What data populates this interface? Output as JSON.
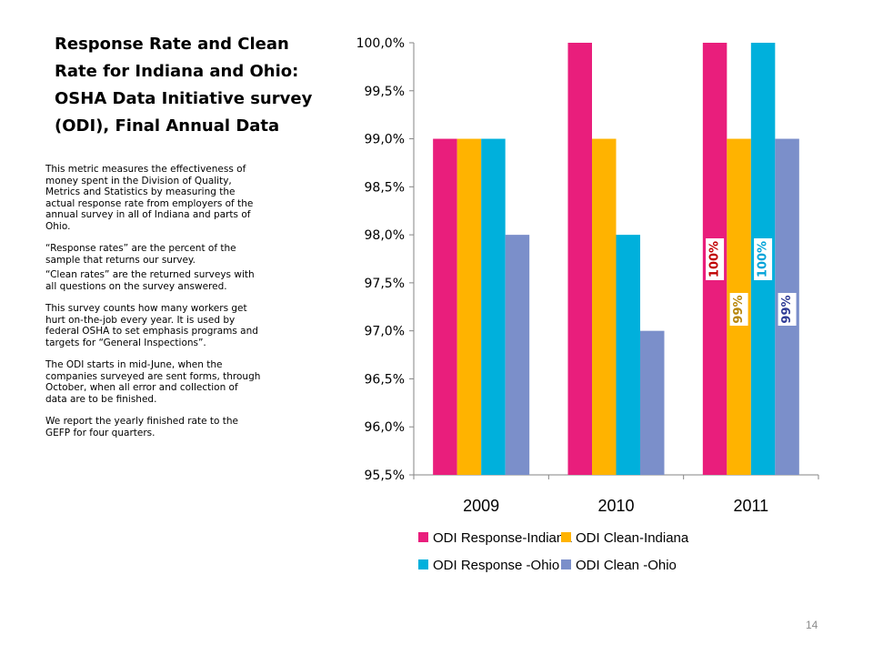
{
  "slide": {
    "title": "Response Rate and Clean\nRate for Indiana and Ohio:\nOSHA Data Initiative survey\n(ODI),  Final Annual Data",
    "paragraphs": [
      "This metric measures  the effectiveness of money spent in the Division of Quality, Metrics and Statistics by measuring the actual response rate from employers of the annual survey in all of Indiana and parts of Ohio.",
      "“Response rates” are the percent of the sample that returns our survey.",
      "“Clean rates” are the returned surveys with all questions on the survey answered.",
      "This survey counts how many workers get hurt on-the-job every year. It is used by federal OSHA to set emphasis programs and targets for “General Inspections”.",
      "The ODI starts in mid-June, when the companies surveyed are sent forms, through October, when all error and collection of data are to be finished.",
      "We report the yearly finished rate to the GEFP for four quarters."
    ],
    "page_number": "14"
  },
  "chart_data": {
    "type": "bar",
    "title": "",
    "xlabel": "",
    "ylabel": "",
    "categories": [
      "2009",
      "2010",
      "2011"
    ],
    "ylim": [
      95.5,
      100.0
    ],
    "y_ticks": [
      "95,5%",
      "96,0%",
      "96,5%",
      "97,0%",
      "97,5%",
      "98,0%",
      "98,5%",
      "99,0%",
      "99,5%",
      "100,0%"
    ],
    "y_tick_values": [
      95.5,
      96.0,
      96.5,
      97.0,
      97.5,
      98.0,
      98.5,
      99.0,
      99.5,
      100.0
    ],
    "series": [
      {
        "name": "ODI Response-Indiana",
        "color": "#E91E7C",
        "values": [
          99.0,
          100.0,
          100.0
        ]
      },
      {
        "name": "ODI Clean-Indiana",
        "color": "#FFB300",
        "values": [
          99.0,
          99.0,
          99.0
        ]
      },
      {
        "name": "ODI Response -Ohio",
        "color": "#00B0DC",
        "values": [
          99.0,
          98.0,
          100.0
        ]
      },
      {
        "name": "ODI Clean -Ohio",
        "color": "#7B8FCA",
        "values": [
          98.0,
          97.0,
          99.0
        ]
      }
    ],
    "data_labels": [
      {
        "series": 0,
        "category": 2,
        "text": "100%",
        "color": "#C00000"
      },
      {
        "series": 1,
        "category": 2,
        "text": "99%",
        "color": "#B8860B"
      },
      {
        "series": 2,
        "category": 2,
        "text": "100%",
        "color": "#00A3D9"
      },
      {
        "series": 3,
        "category": 2,
        "text": "99%",
        "color": "#2F3C96"
      }
    ],
    "grid": false,
    "legend_position": "bottom"
  }
}
